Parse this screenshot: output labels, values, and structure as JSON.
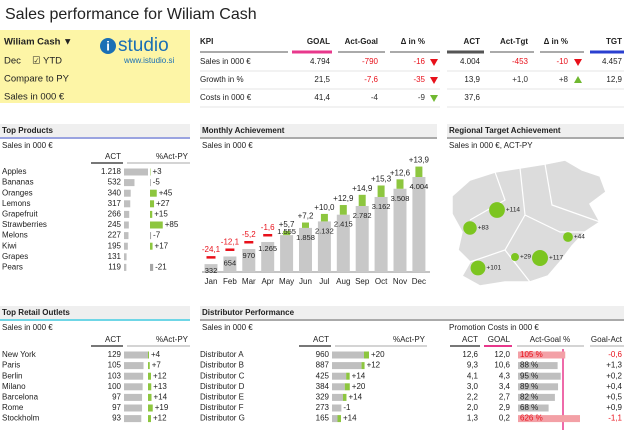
{
  "header": {
    "title": "Sales performance for Wiliam Cash"
  },
  "filters": {
    "person": "Wiliam Cash ▼",
    "month": "Dec",
    "ytd": "☑ YTD",
    "compare": "Compare to PY",
    "unit": "Sales in 000 €"
  },
  "logo": {
    "mark": "i",
    "brand": "studio",
    "url": "www.istudio.si"
  },
  "kpi_goal": {
    "columns": [
      "KPI",
      "GOAL",
      "Act-Goal",
      "Δ in %"
    ],
    "rows": [
      [
        "Sales in 000 €",
        "4.794",
        "-790",
        "-16"
      ],
      [
        "Growth in %",
        "21,5",
        "-7,6",
        "-35"
      ],
      [
        "Costs in 000 €",
        "41,4",
        "-4",
        "-9"
      ]
    ],
    "value_colors": [
      "#e8101a",
      "#e8101a",
      "#333333"
    ],
    "indicators": [
      "down",
      "down",
      "down"
    ],
    "indicator_colors": [
      "#e8101a",
      "#e8101a",
      "#70b830"
    ]
  },
  "kpi_target": {
    "columns": [
      "ACT",
      "Act-Tgt",
      "Δ in %",
      "TGT"
    ],
    "rows": [
      [
        "4.004",
        "-453",
        "-10",
        "4.457"
      ],
      [
        "13,9",
        "+1,0",
        "+8",
        "12,9"
      ],
      [
        "37,6",
        null,
        null,
        null
      ]
    ],
    "value_colors": [
      "#e8101a",
      "#333333",
      "#333333"
    ],
    "indicators": [
      "down",
      "up",
      null
    ],
    "indicator_colors": [
      "#e8101a",
      "#70b830",
      null
    ]
  },
  "products": {
    "title": "Top Products",
    "subtitle": "Sales in 000 €",
    "columns": [
      "ACT",
      "%Act-PY"
    ],
    "categories": [
      "Apples",
      "Bananas",
      "Oranges",
      "Lemons",
      "Grapefruit",
      "Strawberries",
      "Melons",
      "Kiwi",
      "Grapes",
      "Pears"
    ],
    "values": [
      1218,
      532,
      340,
      317,
      266,
      245,
      227,
      195,
      131,
      119
    ],
    "value_labels": [
      "1.218",
      "532",
      "340",
      "317",
      "266",
      "245",
      "227",
      "195",
      "131",
      "119"
    ],
    "deltas": [
      3,
      -5,
      45,
      27,
      15,
      85,
      -7,
      17,
      null,
      -21
    ],
    "delta_labels": [
      "+3",
      "-5",
      "+45",
      "+27",
      "+15",
      "+85",
      "-7",
      "+17",
      null,
      "-21"
    ]
  },
  "outlets": {
    "title": "Top Retail Outlets",
    "subtitle": "Sales in 000 €",
    "columns": [
      "ACT",
      "%Act-PY"
    ],
    "categories": [
      "New York",
      "Paris",
      "Berlin",
      "Milano",
      "Barcelona",
      "Rome",
      "Stockholm"
    ],
    "values": [
      129,
      105,
      103,
      100,
      97,
      97,
      93
    ],
    "deltas": [
      4,
      7,
      12,
      13,
      14,
      19,
      12
    ],
    "delta_labels": [
      "+4",
      "+7",
      "+12",
      "+13",
      "+14",
      "+19",
      "+12"
    ]
  },
  "distributors": {
    "title": "Distributor Performance",
    "subtitle": "Sales in 000 €",
    "columns": [
      "ACT",
      "%Act-PY"
    ],
    "categories": [
      "Distributor A",
      "Distributor B",
      "Distributor C",
      "Distributor D",
      "Distributor E",
      "Distributor F",
      "Distributor G"
    ],
    "values": [
      960,
      887,
      425,
      384,
      329,
      273,
      165
    ],
    "deltas": [
      20,
      12,
      14,
      20,
      14,
      -1,
      14
    ],
    "delta_labels": [
      "+20",
      "+12",
      "+14",
      "+20",
      "+14",
      "-1",
      "+14"
    ]
  },
  "promotion": {
    "subtitle": "Promotion Costs in 000 €",
    "columns": [
      "ACT",
      "GOAL",
      "Act-Goal %",
      "Goal-Act"
    ],
    "act": [
      "12,6",
      "9,3",
      "4,1",
      "3,0",
      "2,2",
      "2,0",
      "1,3"
    ],
    "goal": [
      "12,0",
      "10,6",
      "4,3",
      "3,4",
      "2,7",
      "2,9",
      "0,2"
    ],
    "values": [
      105,
      88,
      95,
      89,
      82,
      68,
      626
    ],
    "value_labels": [
      "105 %",
      "88 %",
      "95 %",
      "89 %",
      "82 %",
      "68 %",
      "626 %"
    ],
    "diff": [
      "-0,6",
      "+1,3",
      "+0,2",
      "+0,4",
      "+0,5",
      "+0,9",
      "-1,1"
    ]
  },
  "regions": {
    "title": "Regional Target Achievement",
    "subtitle": "Sales in 000 €, ACT-PY",
    "values": [
      114,
      83,
      44,
      29,
      101,
      117
    ],
    "value_labels": [
      "+114",
      "+83",
      "+44",
      "+29",
      "+101",
      "+117"
    ],
    "color": "#7cc520"
  },
  "chart_data": {
    "type": "bar",
    "title": "Monthly Achievement",
    "subtitle": "Sales in 000 €",
    "categories": [
      "Jan",
      "Feb",
      "Mar",
      "Apr",
      "May",
      "Jun",
      "Jul",
      "Aug",
      "Sep",
      "Oct",
      "Nov",
      "Dec"
    ],
    "values": [
      332,
      654,
      970,
      1265,
      1555,
      1858,
      2132,
      2415,
      2782,
      3162,
      3508,
      4004
    ],
    "value_labels": [
      "332",
      "654",
      "970",
      "1.265",
      "1.555",
      "1.858",
      "2.132",
      "2.415",
      "2.782",
      "3.162",
      "3.508",
      "4.004"
    ],
    "deltas": [
      -24.1,
      -12.1,
      -5.2,
      -1.6,
      5.7,
      7.2,
      10.0,
      12.9,
      14.9,
      15.3,
      12.6,
      13.9
    ],
    "delta_labels": [
      "-24,1",
      "-12,1",
      "-5,2",
      "-1,6",
      "+5,7",
      "+7,2",
      "+10,0",
      "+12,9",
      "+14,9",
      "+15,3",
      "+12,6",
      "+13,9"
    ],
    "color": "#c8c8c8",
    "positive_color": "#8dc63f",
    "negative_color": "#e8101a"
  }
}
